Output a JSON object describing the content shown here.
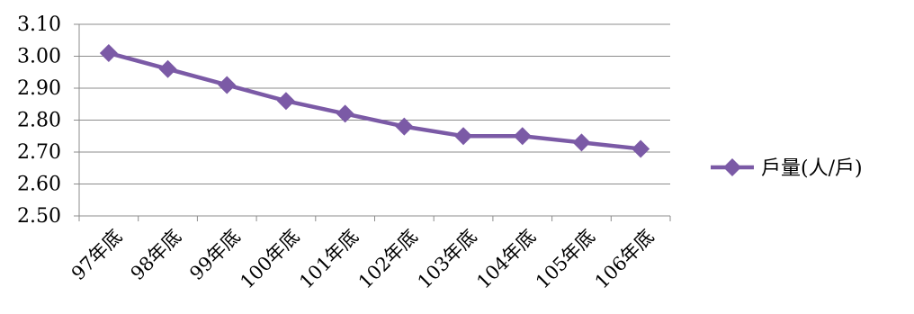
{
  "chart_data": {
    "type": "line",
    "categories": [
      "97年底",
      "98年底",
      "99年底",
      "100年底",
      "101年底",
      "102年底",
      "103年底",
      "104年底",
      "105年底",
      "106年底"
    ],
    "series": [
      {
        "name": "戶量(人/戶)",
        "values": [
          3.01,
          2.96,
          2.91,
          2.86,
          2.82,
          2.78,
          2.75,
          2.75,
          2.73,
          2.71
        ],
        "color": "#7b5aa6",
        "marker": "diamond"
      }
    ],
    "yticks": [
      "2.50",
      "2.60",
      "2.70",
      "2.80",
      "2.90",
      "3.00",
      "3.10"
    ],
    "ylim": [
      2.5,
      3.1
    ],
    "grid": true,
    "legend_position": "right",
    "title": "",
    "xlabel": "",
    "ylabel": ""
  }
}
